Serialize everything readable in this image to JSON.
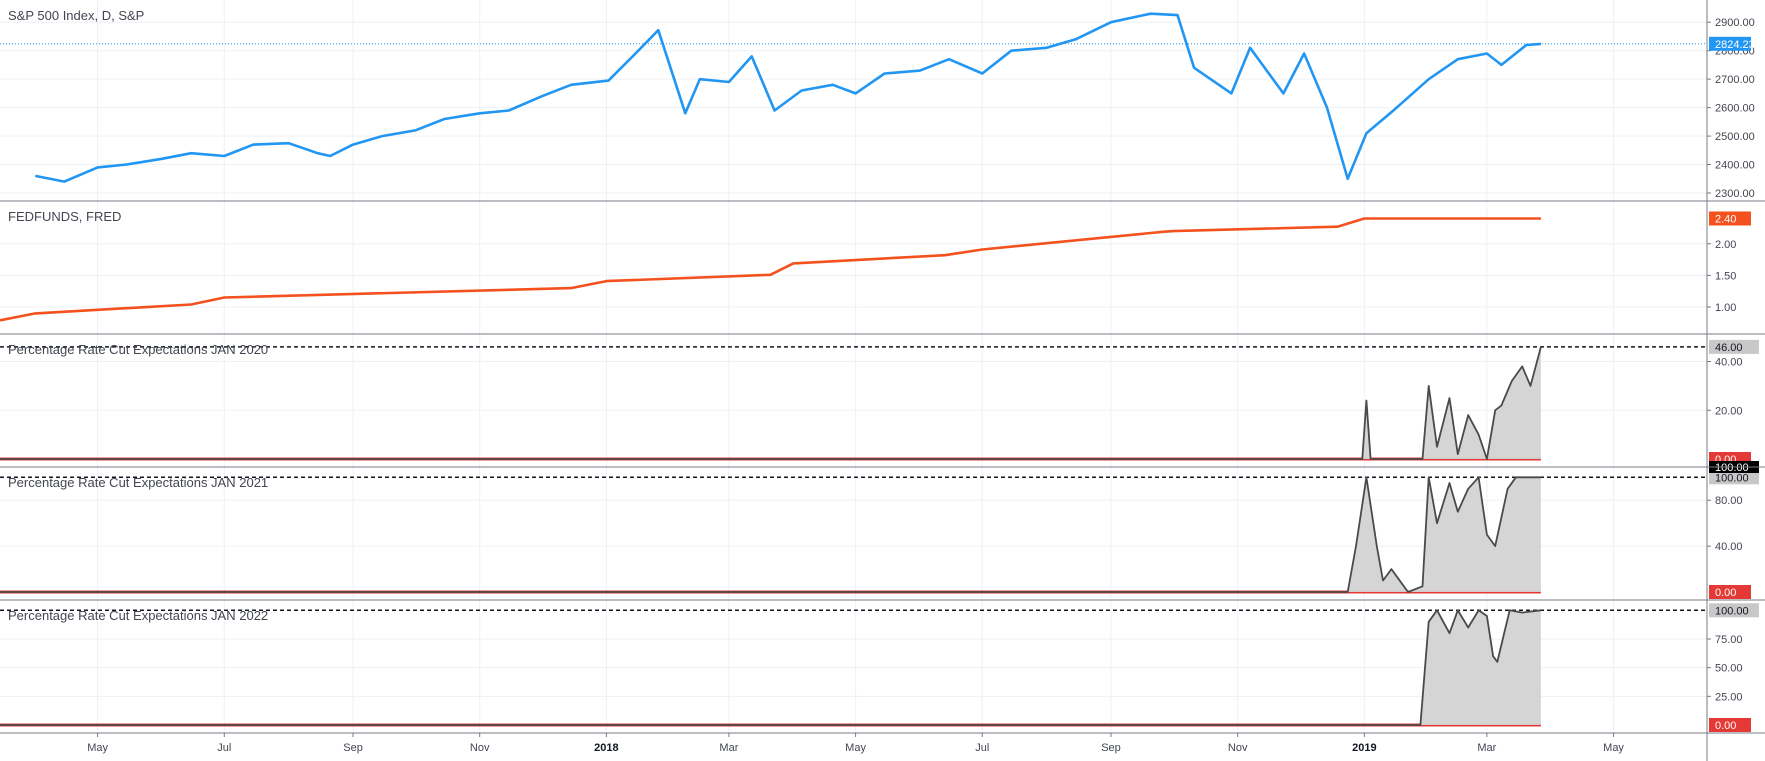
{
  "chart_data": [
    {
      "type": "line",
      "title": "S&P 500 Index, D, S&P",
      "color": "#2196f3",
      "ylim": [
        2300,
        2950
      ],
      "yticks": [
        2300,
        2400,
        2500,
        2600,
        2700,
        2800,
        2900
      ],
      "ytick_labels": [
        "2300.00",
        "2400.00",
        "2500.00",
        "2600.00",
        "2700.00",
        "2800.00",
        "2900.00"
      ],
      "last_value": 2824.23,
      "last_label": "2824.23",
      "x": [
        "2017-04-01",
        "2017-04-15",
        "2017-05-01",
        "2017-05-15",
        "2017-06-01",
        "2017-06-15",
        "2017-07-01",
        "2017-07-15",
        "2017-08-01",
        "2017-08-15",
        "2017-08-21",
        "2017-09-01",
        "2017-09-15",
        "2017-10-01",
        "2017-10-15",
        "2017-11-01",
        "2017-11-15",
        "2017-12-01",
        "2017-12-15",
        "2018-01-02",
        "2018-01-15",
        "2018-01-26",
        "2018-02-08",
        "2018-02-15",
        "2018-03-01",
        "2018-03-12",
        "2018-03-23",
        "2018-04-05",
        "2018-04-20",
        "2018-05-01",
        "2018-05-15",
        "2018-06-01",
        "2018-06-15",
        "2018-07-01",
        "2018-07-15",
        "2018-08-01",
        "2018-08-15",
        "2018-09-01",
        "2018-09-20",
        "2018-10-03",
        "2018-10-11",
        "2018-10-29",
        "2018-11-07",
        "2018-11-23",
        "2018-12-03",
        "2018-12-14",
        "2018-12-24",
        "2019-01-02",
        "2019-01-15",
        "2019-02-01",
        "2019-02-15",
        "2019-03-01",
        "2019-03-08",
        "2019-03-20",
        "2019-03-27"
      ],
      "values": [
        2360,
        2340,
        2390,
        2400,
        2420,
        2440,
        2430,
        2470,
        2475,
        2440,
        2430,
        2470,
        2500,
        2520,
        2560,
        2580,
        2590,
        2640,
        2680,
        2695,
        2790,
        2872,
        2580,
        2700,
        2690,
        2780,
        2590,
        2660,
        2680,
        2650,
        2720,
        2730,
        2770,
        2720,
        2800,
        2810,
        2840,
        2900,
        2930,
        2925,
        2740,
        2650,
        2810,
        2650,
        2790,
        2600,
        2350,
        2510,
        2590,
        2700,
        2770,
        2790,
        2750,
        2820,
        2824
      ]
    },
    {
      "type": "line",
      "title": "FEDFUNDS, FRED",
      "color": "#f4511e",
      "ylim": [
        0.7,
        2.55
      ],
      "yticks": [
        1.0,
        1.5,
        2.0
      ],
      "ytick_labels": [
        "1.00",
        "1.50",
        "2.00"
      ],
      "last_value": 2.4,
      "last_label": "2.40",
      "x": [
        "2017-03-15",
        "2017-04-01",
        "2017-06-15",
        "2017-07-01",
        "2017-12-15",
        "2018-01-01",
        "2018-03-21",
        "2018-04-01",
        "2018-06-13",
        "2018-07-01",
        "2018-09-26",
        "2018-10-01",
        "2018-12-19",
        "2019-01-01",
        "2019-03-27"
      ],
      "values": [
        0.79,
        0.9,
        1.04,
        1.15,
        1.3,
        1.41,
        1.51,
        1.69,
        1.82,
        1.91,
        2.19,
        2.2,
        2.27,
        2.4,
        2.4
      ]
    },
    {
      "type": "area",
      "title": "Percentage Rate Cut Expectations JAN 2020",
      "color": "#4a4a4a",
      "ylim": [
        0,
        48
      ],
      "yticks": [
        20,
        40
      ],
      "ytick_labels": [
        "20.00",
        "40.00"
      ],
      "dashed_level": 46,
      "dashed_label": "46.00",
      "zero_label": "0.00",
      "x": [
        "2017-03-15",
        "2018-12-31",
        "2019-01-02",
        "2019-01-04",
        "2019-01-29",
        "2019-02-01",
        "2019-02-05",
        "2019-02-11",
        "2019-02-15",
        "2019-02-20",
        "2019-02-25",
        "2019-03-01",
        "2019-03-05",
        "2019-03-08",
        "2019-03-13",
        "2019-03-18",
        "2019-03-22",
        "2019-03-27"
      ],
      "values": [
        0,
        0,
        24,
        0,
        0,
        30,
        5,
        25,
        2,
        18,
        10,
        0,
        20,
        22,
        32,
        38,
        30,
        46
      ]
    },
    {
      "type": "area",
      "title": "Percentage Rate Cut Expectations JAN 2021",
      "color": "#4a4a4a",
      "ylim": [
        0,
        102
      ],
      "yticks": [
        40,
        80
      ],
      "ytick_labels": [
        "40.00",
        "80.00"
      ],
      "dashed_level": 100,
      "dashed_label": "100.00",
      "zero_label": "0.00",
      "top_tag_label": "100.00",
      "x": [
        "2017-03-15",
        "2018-12-24",
        "2018-12-28",
        "2019-01-02",
        "2019-01-07",
        "2019-01-10",
        "2019-01-14",
        "2019-01-22",
        "2019-01-29",
        "2019-02-01",
        "2019-02-05",
        "2019-02-11",
        "2019-02-15",
        "2019-02-20",
        "2019-02-25",
        "2019-03-01",
        "2019-03-05",
        "2019-03-11",
        "2019-03-15",
        "2019-03-27"
      ],
      "values": [
        0,
        0,
        40,
        100,
        40,
        10,
        20,
        0,
        5,
        100,
        60,
        95,
        70,
        90,
        100,
        50,
        40,
        90,
        100,
        100
      ]
    },
    {
      "type": "area",
      "title": "Percentage Rate Cut Expectations JAN 2022",
      "color": "#4a4a4a",
      "ylim": [
        0,
        102
      ],
      "yticks": [
        25,
        50,
        75
      ],
      "ytick_labels": [
        "25.00",
        "50.00",
        "75.00"
      ],
      "dashed_level": 100,
      "dashed_label": "100.00",
      "zero_label": "0.00",
      "x": [
        "2017-03-15",
        "2019-01-28",
        "2019-02-01",
        "2019-02-05",
        "2019-02-11",
        "2019-02-15",
        "2019-02-20",
        "2019-02-25",
        "2019-03-01",
        "2019-03-04",
        "2019-03-06",
        "2019-03-08",
        "2019-03-12",
        "2019-03-18",
        "2019-03-27"
      ],
      "values": [
        0,
        0,
        90,
        100,
        80,
        100,
        85,
        100,
        95,
        60,
        55,
        70,
        100,
        98,
        100
      ]
    }
  ],
  "time_axis": {
    "ticks": [
      {
        "date": "2017-05-01",
        "label": "May",
        "major": false
      },
      {
        "date": "2017-07-01",
        "label": "Jul",
        "major": false
      },
      {
        "date": "2017-09-01",
        "label": "Sep",
        "major": false
      },
      {
        "date": "2017-11-01",
        "label": "Nov",
        "major": false
      },
      {
        "date": "2018-01-01",
        "label": "2018",
        "major": true
      },
      {
        "date": "2018-03-01",
        "label": "Mar",
        "major": false
      },
      {
        "date": "2018-05-01",
        "label": "May",
        "major": false
      },
      {
        "date": "2018-07-01",
        "label": "Jul",
        "major": false
      },
      {
        "date": "2018-09-01",
        "label": "Sep",
        "major": false
      },
      {
        "date": "2018-11-01",
        "label": "Nov",
        "major": false
      },
      {
        "date": "2019-01-01",
        "label": "2019",
        "major": true
      },
      {
        "date": "2019-03-01",
        "label": "Mar",
        "major": false
      },
      {
        "date": "2019-05-01",
        "label": "May",
        "major": false
      }
    ]
  },
  "colors": {
    "grid": "#eef1f6",
    "axis_border": "#787b86",
    "zero_line": "#e53935",
    "area_fill": "#d3d3d3",
    "dashed_line": "#131722",
    "label_bg_gray": "#c8c8c8",
    "label_bg_black": "#000000"
  }
}
